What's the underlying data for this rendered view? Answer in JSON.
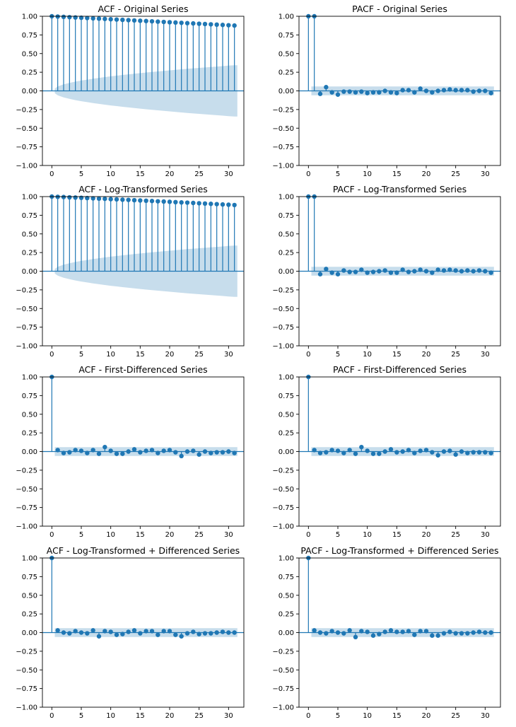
{
  "colors": {
    "stem": "#1f77b4",
    "band": "#1f77b4",
    "axis": "#000000"
  },
  "chart_data": [
    {
      "type": "stem",
      "title": "ACF - Original Series",
      "xlim": [
        -1.6,
        32.6
      ],
      "ylim": [
        -1.0,
        1.0
      ],
      "xticks": [
        0,
        5,
        10,
        15,
        20,
        25,
        30
      ],
      "yticks": [
        -1.0,
        -0.75,
        -0.5,
        -0.25,
        0.0,
        0.25,
        0.5,
        0.75,
        1.0
      ],
      "ytick_labels": [
        "−1.00",
        "−0.75",
        "−0.50",
        "−0.25",
        "0.00",
        "0.25",
        "0.50",
        "0.75",
        "1.00"
      ],
      "band": [
        0.0,
        0.06,
        0.087,
        0.107,
        0.124,
        0.138,
        0.151,
        0.163,
        0.174,
        0.185,
        0.195,
        0.204,
        0.213,
        0.222,
        0.23,
        0.238,
        0.246,
        0.254,
        0.261,
        0.268,
        0.275,
        0.282,
        0.289,
        0.296,
        0.302,
        0.308,
        0.314,
        0.32,
        0.326,
        0.332,
        0.338,
        0.344
      ],
      "values": [
        1.0,
        0.996,
        0.992,
        0.988,
        0.984,
        0.98,
        0.976,
        0.972,
        0.968,
        0.964,
        0.96,
        0.956,
        0.952,
        0.948,
        0.944,
        0.94,
        0.936,
        0.932,
        0.928,
        0.924,
        0.92,
        0.916,
        0.912,
        0.908,
        0.904,
        0.9,
        0.896,
        0.892,
        0.888,
        0.884,
        0.88,
        0.876
      ]
    },
    {
      "type": "stem",
      "title": "PACF - Original Series",
      "xlim": [
        -1.6,
        32.6
      ],
      "ylim": [
        -1.0,
        1.0
      ],
      "xticks": [
        0,
        5,
        10,
        15,
        20,
        25,
        30
      ],
      "yticks": [
        -1.0,
        -0.75,
        -0.5,
        -0.25,
        0.0,
        0.25,
        0.5,
        0.75,
        1.0
      ],
      "ytick_labels": [
        "−1.00",
        "−0.75",
        "−0.50",
        "−0.25",
        "0.00",
        "0.25",
        "0.50",
        "0.75",
        "1.00"
      ],
      "band_const": 0.06,
      "values": [
        1.0,
        1.0,
        -0.04,
        0.05,
        -0.02,
        -0.05,
        -0.01,
        -0.01,
        -0.02,
        -0.01,
        -0.03,
        -0.02,
        -0.02,
        0.0,
        -0.02,
        -0.03,
        0.01,
        0.01,
        -0.02,
        0.03,
        0.0,
        -0.02,
        0.0,
        0.01,
        0.02,
        0.01,
        0.01,
        0.01,
        -0.01,
        0.0,
        0.0,
        -0.03
      ]
    },
    {
      "type": "stem",
      "title": "ACF - Log-Transformed Series",
      "xlim": [
        -1.6,
        32.6
      ],
      "ylim": [
        -1.0,
        1.0
      ],
      "xticks": [
        0,
        5,
        10,
        15,
        20,
        25,
        30
      ],
      "yticks": [
        -1.0,
        -0.75,
        -0.5,
        -0.25,
        0.0,
        0.25,
        0.5,
        0.75,
        1.0
      ],
      "ytick_labels": [
        "−1.00",
        "−0.75",
        "−0.50",
        "−0.25",
        "0.00",
        "0.25",
        "0.50",
        "0.75",
        "1.00"
      ],
      "band": [
        0.0,
        0.06,
        0.087,
        0.107,
        0.124,
        0.138,
        0.151,
        0.163,
        0.174,
        0.185,
        0.195,
        0.204,
        0.213,
        0.222,
        0.23,
        0.238,
        0.246,
        0.254,
        0.261,
        0.268,
        0.275,
        0.282,
        0.289,
        0.296,
        0.302,
        0.308,
        0.314,
        0.32,
        0.326,
        0.332,
        0.338,
        0.344
      ],
      "values": [
        1.0,
        0.997,
        0.994,
        0.99,
        0.987,
        0.984,
        0.98,
        0.977,
        0.973,
        0.97,
        0.966,
        0.963,
        0.959,
        0.956,
        0.952,
        0.948,
        0.945,
        0.941,
        0.937,
        0.934,
        0.93,
        0.926,
        0.922,
        0.919,
        0.915,
        0.911,
        0.907,
        0.903,
        0.899,
        0.895,
        0.891,
        0.887
      ]
    },
    {
      "type": "stem",
      "title": "PACF - Log-Transformed Series",
      "xlim": [
        -1.6,
        32.6
      ],
      "ylim": [
        -1.0,
        1.0
      ],
      "xticks": [
        0,
        5,
        10,
        15,
        20,
        25,
        30
      ],
      "yticks": [
        -1.0,
        -0.75,
        -0.5,
        -0.25,
        0.0,
        0.25,
        0.5,
        0.75,
        1.0
      ],
      "ytick_labels": [
        "−1.00",
        "−0.75",
        "−0.50",
        "−0.25",
        "0.00",
        "0.25",
        "0.50",
        "0.75",
        "1.00"
      ],
      "band_const": 0.06,
      "values": [
        1.0,
        1.0,
        -0.04,
        0.03,
        -0.02,
        -0.04,
        0.01,
        -0.01,
        -0.01,
        0.02,
        -0.02,
        -0.01,
        0.0,
        0.01,
        -0.02,
        -0.02,
        0.02,
        -0.01,
        0.0,
        0.02,
        0.0,
        -0.02,
        0.02,
        0.01,
        0.02,
        0.01,
        0.0,
        0.01,
        0.0,
        0.01,
        0.0,
        -0.02
      ]
    },
    {
      "type": "stem",
      "title": "ACF - First-Differenced Series",
      "xlim": [
        -1.6,
        32.6
      ],
      "ylim": [
        -1.0,
        1.0
      ],
      "xticks": [
        0,
        5,
        10,
        15,
        20,
        25,
        30
      ],
      "yticks": [
        -1.0,
        -0.75,
        -0.5,
        -0.25,
        0.0,
        0.25,
        0.5,
        0.75,
        1.0
      ],
      "ytick_labels": [
        "−1.00",
        "−0.75",
        "−0.50",
        "−0.25",
        "0.00",
        "0.25",
        "0.50",
        "0.75",
        "1.00"
      ],
      "band_const": 0.06,
      "values": [
        1.0,
        0.02,
        -0.02,
        -0.01,
        0.02,
        0.01,
        -0.02,
        0.02,
        -0.03,
        0.06,
        0.01,
        -0.03,
        -0.03,
        0.0,
        0.03,
        -0.01,
        0.01,
        0.02,
        -0.02,
        0.01,
        0.02,
        -0.01,
        -0.06,
        0.0,
        0.01,
        -0.04,
        0.0,
        -0.02,
        -0.01,
        -0.01,
        0.0,
        -0.02
      ]
    },
    {
      "type": "stem",
      "title": "PACF - First-Differenced Series",
      "xlim": [
        -1.6,
        32.6
      ],
      "ylim": [
        -1.0,
        1.0
      ],
      "xticks": [
        0,
        5,
        10,
        15,
        20,
        25,
        30
      ],
      "yticks": [
        -1.0,
        -0.75,
        -0.5,
        -0.25,
        0.0,
        0.25,
        0.5,
        0.75,
        1.0
      ],
      "ytick_labels": [
        "−1.00",
        "−0.75",
        "−0.50",
        "−0.25",
        "0.00",
        "0.25",
        "0.50",
        "0.75",
        "1.00"
      ],
      "band_const": 0.06,
      "values": [
        1.0,
        0.02,
        -0.02,
        -0.01,
        0.02,
        0.01,
        -0.02,
        0.02,
        -0.03,
        0.06,
        0.01,
        -0.03,
        -0.03,
        0.0,
        0.03,
        -0.01,
        0.0,
        0.02,
        -0.02,
        0.01,
        0.02,
        -0.01,
        -0.05,
        0.0,
        0.01,
        -0.04,
        0.0,
        -0.02,
        -0.01,
        -0.01,
        -0.01,
        -0.02
      ]
    },
    {
      "type": "stem",
      "title": "ACF - Log-Transformed + Differenced Series",
      "xlim": [
        -1.6,
        32.6
      ],
      "ylim": [
        -1.0,
        1.0
      ],
      "xticks": [
        0,
        5,
        10,
        15,
        20,
        25,
        30
      ],
      "yticks": [
        -1.0,
        -0.75,
        -0.5,
        -0.25,
        0.0,
        0.25,
        0.5,
        0.75,
        1.0
      ],
      "ytick_labels": [
        "−1.00",
        "−0.75",
        "−0.50",
        "−0.25",
        "0.00",
        "0.25",
        "0.50",
        "0.75",
        "1.00"
      ],
      "band_const": 0.06,
      "values": [
        1.0,
        0.03,
        0.0,
        -0.01,
        0.02,
        0.0,
        -0.01,
        0.03,
        -0.05,
        0.02,
        0.01,
        -0.03,
        -0.02,
        0.01,
        0.03,
        -0.01,
        0.02,
        0.02,
        -0.03,
        0.02,
        0.02,
        -0.03,
        -0.05,
        -0.01,
        0.01,
        -0.02,
        -0.01,
        -0.01,
        0.0,
        0.01,
        0.0,
        0.0
      ]
    },
    {
      "type": "stem",
      "title": "PACF - Log-Transformed + Differenced Series",
      "xlim": [
        -1.6,
        32.6
      ],
      "ylim": [
        -1.0,
        1.0
      ],
      "xticks": [
        0,
        5,
        10,
        15,
        20,
        25,
        30
      ],
      "yticks": [
        -1.0,
        -0.75,
        -0.5,
        -0.25,
        0.0,
        0.25,
        0.5,
        0.75,
        1.0
      ],
      "ytick_labels": [
        "−1.00",
        "−0.75",
        "−0.50",
        "−0.25",
        "0.00",
        "0.25",
        "0.50",
        "0.75",
        "1.00"
      ],
      "band_const": 0.06,
      "values": [
        1.0,
        0.03,
        0.0,
        -0.01,
        0.02,
        0.0,
        -0.01,
        0.03,
        -0.06,
        0.02,
        0.01,
        -0.04,
        -0.02,
        0.01,
        0.03,
        0.01,
        0.01,
        0.02,
        -0.03,
        0.02,
        0.02,
        -0.04,
        -0.04,
        -0.01,
        0.01,
        -0.01,
        -0.01,
        -0.01,
        0.0,
        0.01,
        0.0,
        0.0
      ]
    }
  ]
}
